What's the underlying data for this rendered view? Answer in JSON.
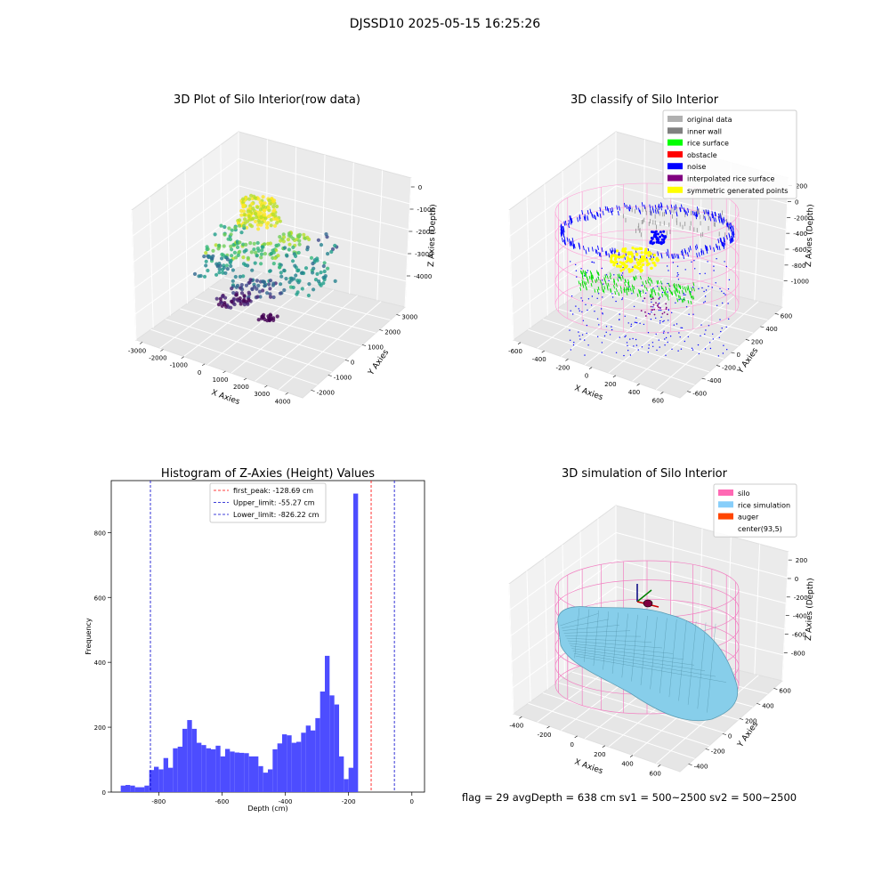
{
  "figure": {
    "title": "DJSSD10 2025-05-15 16:25:26",
    "footer": "flag = 29  avgDepth = 638 cm  sv1 = 500~2500  sv2 = 500~2500"
  },
  "chart_data": [
    {
      "type": "scatter",
      "kind": "3d",
      "title": "3D Plot of Silo Interior(row data)",
      "xlabel": "X Axies",
      "ylabel": "Y Axies",
      "zlabel": "Z Axies (Depth)",
      "xticks": [
        "-3000",
        "-2000",
        "-1000",
        "0",
        "1000",
        "2000",
        "3000",
        "4000"
      ],
      "yticks": [
        "-2000",
        "-1000",
        "0",
        "1000",
        "2000",
        "3000"
      ],
      "zticks": [
        "0",
        "-1000",
        "-2000",
        "-3000",
        "-4000"
      ],
      "xlim": [
        -3000,
        4000
      ],
      "ylim": [
        -2000,
        3000
      ],
      "zlim": [
        -4500,
        0
      ],
      "colormap": "viridis",
      "grid": true
    },
    {
      "type": "scatter",
      "kind": "3d",
      "title": "3D classify of Silo Interior",
      "xlabel": "X Axies",
      "ylabel": "Y Axies",
      "zlabel": "Z Axies (Depth)",
      "xticks": [
        "-600",
        "-400",
        "-200",
        "0",
        "200",
        "400",
        "600"
      ],
      "yticks": [
        "-600",
        "-400",
        "-200",
        "0",
        "200",
        "400",
        "600"
      ],
      "zticks": [
        "200",
        "0",
        "-200",
        "-400",
        "-600",
        "-800",
        "-1000"
      ],
      "xlim": [
        -600,
        700
      ],
      "ylim": [
        -600,
        700
      ],
      "zlim": [
        -1000,
        200
      ],
      "legend_position": "top-right",
      "legend": [
        {
          "label": "original data",
          "color": "#b0b0b0"
        },
        {
          "label": "inner wall",
          "color": "#808080"
        },
        {
          "label": "rice surface",
          "color": "#00ff00"
        },
        {
          "label": "obstacle",
          "color": "#ff0000"
        },
        {
          "label": "noise",
          "color": "#0000ff"
        },
        {
          "label": "interpolated rice surface",
          "color": "#800080"
        },
        {
          "label": "symmetric generated points",
          "color": "#ffff00"
        }
      ],
      "grid": true
    },
    {
      "type": "bar",
      "kind": "histogram",
      "title": "Histogram of Z-Axies (Height) Values",
      "xlabel": "Depth (cm)",
      "ylabel": "Frequency",
      "bar_color": "#4d4dff",
      "bins": [
        {
          "x0": -920,
          "x1": -905,
          "count": 20
        },
        {
          "x0": -905,
          "x1": -890,
          "count": 22
        },
        {
          "x0": -890,
          "x1": -875,
          "count": 20
        },
        {
          "x0": -875,
          "x1": -860,
          "count": 15
        },
        {
          "x0": -860,
          "x1": -845,
          "count": 15
        },
        {
          "x0": -845,
          "x1": -830,
          "count": 20
        },
        {
          "x0": -830,
          "x1": -815,
          "count": 68
        },
        {
          "x0": -815,
          "x1": -800,
          "count": 78
        },
        {
          "x0": -800,
          "x1": -785,
          "count": 70
        },
        {
          "x0": -785,
          "x1": -770,
          "count": 105
        },
        {
          "x0": -770,
          "x1": -755,
          "count": 75
        },
        {
          "x0": -755,
          "x1": -740,
          "count": 135
        },
        {
          "x0": -740,
          "x1": -725,
          "count": 140
        },
        {
          "x0": -725,
          "x1": -710,
          "count": 195
        },
        {
          "x0": -710,
          "x1": -695,
          "count": 222
        },
        {
          "x0": -695,
          "x1": -680,
          "count": 195
        },
        {
          "x0": -680,
          "x1": -665,
          "count": 152
        },
        {
          "x0": -665,
          "x1": -650,
          "count": 145
        },
        {
          "x0": -650,
          "x1": -635,
          "count": 135
        },
        {
          "x0": -635,
          "x1": -620,
          "count": 132
        },
        {
          "x0": -620,
          "x1": -605,
          "count": 143
        },
        {
          "x0": -605,
          "x1": -590,
          "count": 110
        },
        {
          "x0": -590,
          "x1": -575,
          "count": 133
        },
        {
          "x0": -575,
          "x1": -560,
          "count": 125
        },
        {
          "x0": -560,
          "x1": -545,
          "count": 122
        },
        {
          "x0": -545,
          "x1": -530,
          "count": 121
        },
        {
          "x0": -530,
          "x1": -515,
          "count": 120
        },
        {
          "x0": -515,
          "x1": -500,
          "count": 110
        },
        {
          "x0": -500,
          "x1": -485,
          "count": 110
        },
        {
          "x0": -485,
          "x1": -470,
          "count": 80
        },
        {
          "x0": -470,
          "x1": -455,
          "count": 60
        },
        {
          "x0": -455,
          "x1": -440,
          "count": 70
        },
        {
          "x0": -440,
          "x1": -425,
          "count": 132
        },
        {
          "x0": -425,
          "x1": -410,
          "count": 150
        },
        {
          "x0": -410,
          "x1": -395,
          "count": 178
        },
        {
          "x0": -395,
          "x1": -380,
          "count": 175
        },
        {
          "x0": -380,
          "x1": -365,
          "count": 152
        },
        {
          "x0": -365,
          "x1": -350,
          "count": 155
        },
        {
          "x0": -350,
          "x1": -335,
          "count": 183
        },
        {
          "x0": -335,
          "x1": -320,
          "count": 205
        },
        {
          "x0": -320,
          "x1": -305,
          "count": 190
        },
        {
          "x0": -305,
          "x1": -290,
          "count": 228
        },
        {
          "x0": -290,
          "x1": -275,
          "count": 310
        },
        {
          "x0": -275,
          "x1": -260,
          "count": 420
        },
        {
          "x0": -260,
          "x1": -245,
          "count": 298
        },
        {
          "x0": -245,
          "x1": -230,
          "count": 270
        },
        {
          "x0": -230,
          "x1": -215,
          "count": 110
        },
        {
          "x0": -215,
          "x1": -200,
          "count": 40
        },
        {
          "x0": -200,
          "x1": -185,
          "count": 75
        },
        {
          "x0": -185,
          "x1": -170,
          "count": 920
        }
      ],
      "xlim": [
        -950,
        40
      ],
      "ylim": [
        0,
        960
      ],
      "xticks": [
        -800,
        -600,
        -400,
        -200,
        0
      ],
      "yticks": [
        0,
        200,
        400,
        600,
        800
      ],
      "vlines": [
        {
          "x": -128.69,
          "color": "#ff0000",
          "label": "first_peak: -128.69 cm"
        },
        {
          "x": -55.27,
          "color": "#0000cc",
          "label": "Upper_limit: -55.27 cm"
        },
        {
          "x": -826.22,
          "color": "#0000cc",
          "label": "Lower_limit: -826.22 cm"
        }
      ],
      "legend_position": "top-center",
      "grid": false
    },
    {
      "type": "area",
      "kind": "3d-surface",
      "title": "3D simulation of Silo Interior",
      "xlabel": "X Axies",
      "ylabel": "Y Axies",
      "zlabel": "Z Axies (Depth)",
      "xticks": [
        "-400",
        "-200",
        "0",
        "200",
        "400",
        "600"
      ],
      "yticks": [
        "-400",
        "-200",
        "0",
        "200",
        "400",
        "600"
      ],
      "zticks": [
        "200",
        "0",
        "-200",
        "-400",
        "-600",
        "-800"
      ],
      "legend_position": "top-right",
      "legend": [
        {
          "label": "silo",
          "color": "#ff69b4"
        },
        {
          "label": "rice simulation",
          "color": "#87cefa"
        },
        {
          "label": "auger",
          "color": "#ff4500"
        },
        {
          "label": "center(93,5)",
          "color": "#ffffff"
        }
      ],
      "grid": true
    }
  ]
}
